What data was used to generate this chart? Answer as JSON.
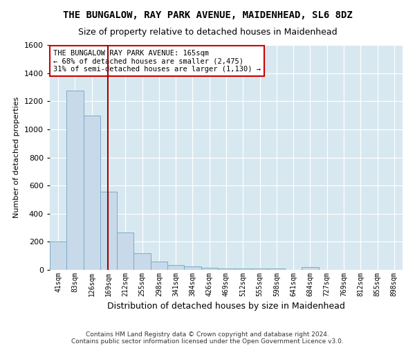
{
  "title": "THE BUNGALOW, RAY PARK AVENUE, MAIDENHEAD, SL6 8DZ",
  "subtitle": "Size of property relative to detached houses in Maidenhead",
  "xlabel": "Distribution of detached houses by size in Maidenhead",
  "ylabel": "Number of detached properties",
  "categories": [
    "41sqm",
    "83sqm",
    "126sqm",
    "169sqm",
    "212sqm",
    "255sqm",
    "298sqm",
    "341sqm",
    "384sqm",
    "426sqm",
    "469sqm",
    "512sqm",
    "555sqm",
    "598sqm",
    "641sqm",
    "684sqm",
    "727sqm",
    "769sqm",
    "812sqm",
    "855sqm",
    "898sqm"
  ],
  "values": [
    200,
    1275,
    1100,
    555,
    268,
    120,
    60,
    35,
    25,
    15,
    10,
    10,
    10,
    10,
    0,
    20,
    0,
    0,
    0,
    0,
    0
  ],
  "bar_color": "#c8daea",
  "bar_edge_color": "#7aaac8",
  "vline_color": "#990000",
  "vline_x_index": 2.95,
  "annotation_text": "THE BUNGALOW RAY PARK AVENUE: 165sqm\n← 68% of detached houses are smaller (2,475)\n31% of semi-detached houses are larger (1,130) →",
  "annotation_box_facecolor": "#ffffff",
  "annotation_box_edgecolor": "#cc0000",
  "ylim": [
    0,
    1600
  ],
  "yticks": [
    0,
    200,
    400,
    600,
    800,
    1000,
    1200,
    1400,
    1600
  ],
  "ax_bg_color": "#d8e8f0",
  "fig_bg_color": "#ffffff",
  "grid_color": "#ffffff",
  "title_fontsize": 10,
  "subtitle_fontsize": 9,
  "footer_line1": "Contains HM Land Registry data © Crown copyright and database right 2024.",
  "footer_line2": "Contains public sector information licensed under the Open Government Licence v3.0."
}
